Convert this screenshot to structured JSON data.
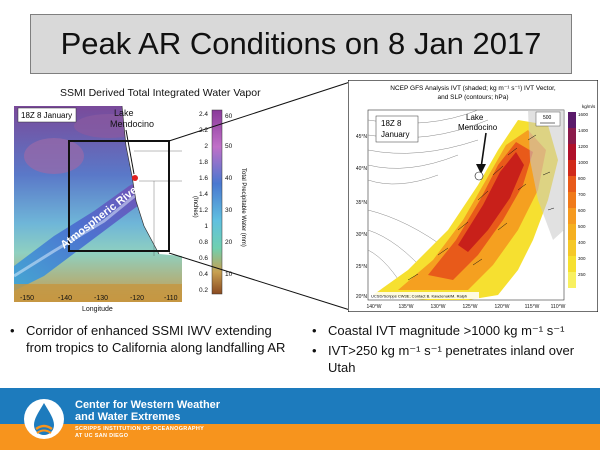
{
  "slide": {
    "title": "Peak AR Conditions on 8 Jan 2017"
  },
  "left": {
    "title": "SSMI Derived Total Integrated Water Vapor",
    "date_label": "18Z 8 January",
    "location_label_line1": "Lake",
    "location_label_line2": "Mendocino",
    "ar_label": "Atmospheric River",
    "inches_ticks": [
      "2.4",
      "2.2",
      "2",
      "1.8",
      "1.6",
      "1.4",
      "1.2",
      "1",
      "0.8",
      "0.6",
      "0.4",
      "0.2"
    ],
    "mm_ticks": [
      "60",
      "50",
      "40",
      "30",
      "20",
      "10"
    ],
    "inches_label": "(Inches)",
    "mm_label": "Total Precipitable Water (mm)",
    "lon_ticks": [
      "-150",
      "-140",
      "-130",
      "-120",
      "-110"
    ],
    "lon_label": "Longitude"
  },
  "right": {
    "title_line1": "NCEP GFS Analysis IVT (shaded; kg m⁻¹ s⁻¹) IVT Vector,",
    "title_line2": "and SLP (contours; hPa)",
    "date_line1": "18Z 8",
    "date_line2": "January",
    "location_line1": "Lake",
    "location_line2": "Mendocino",
    "vector_scale": "500",
    "unit_label": "kg/m/s",
    "lat_ticks": [
      "45°N",
      "40°N",
      "35°N",
      "30°N",
      "25°N",
      "20°N"
    ],
    "lon_ticks": [
      "140°W",
      "135°W",
      "130°W",
      "125°W",
      "120°W",
      "115°W",
      "110°W"
    ],
    "ivt_ticks": [
      "1600",
      "1400",
      "1200",
      "1000",
      "800",
      "700",
      "600",
      "500",
      "400",
      "300",
      "250"
    ],
    "credit": "UCSD/Scripps CW3E; Contact B. Kawzenuk/M. Ralph"
  },
  "bullets_left": [
    "Corridor of enhanced SSMI IWV extending from tropics to California along landfalling AR"
  ],
  "bullets_right": [
    "Coastal IVT magnitude >1000 kg m⁻¹ s⁻¹",
    "IVT>250 kg m⁻¹ s⁻¹ penetrates inland over Utah"
  ],
  "footer": {
    "center_line1": "Center for Western Weather",
    "center_line2": "and Water Extremes",
    "inst_line1": "SCRIPPS INSTITUTION OF OCEANOGRAPHY",
    "inst_line2": "AT UC SAN DIEGO"
  },
  "colors": {
    "footer_blue": "#1d7bbd",
    "footer_orange": "#f7941d",
    "title_bg": "#d9d9d9"
  }
}
